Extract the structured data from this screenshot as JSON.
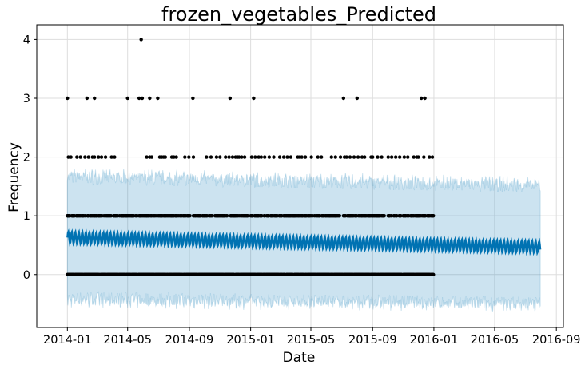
{
  "chart_data": {
    "type": "line",
    "title": "frozen_vegetables_Predicted",
    "xlabel": "Date",
    "ylabel": "Frequency",
    "x_range": [
      "2013-12-01",
      "2016-09-18"
    ],
    "xlim_display": [
      "2013-11-01",
      "2016-09-15"
    ],
    "ylim": [
      -0.9,
      4.25
    ],
    "x_ticks": [
      "2014-01",
      "2014-05",
      "2014-09",
      "2015-01",
      "2015-05",
      "2015-09",
      "2016-01",
      "2016-05",
      "2016-09"
    ],
    "x_tick_dates": [
      "2014-01-01",
      "2014-05-01",
      "2014-09-01",
      "2015-01-01",
      "2015-05-01",
      "2015-09-01",
      "2016-01-01",
      "2016-05-01",
      "2016-09-01"
    ],
    "y_ticks": [
      0,
      1,
      2,
      3,
      4
    ],
    "grid": true,
    "forecast_start": "2014-01-01",
    "forecast_end": "2016-07-31",
    "observed_end": "2015-12-31",
    "forecast_trend": [
      {
        "date": "2014-01-01",
        "yhat": 0.63
      },
      {
        "date": "2016-07-31",
        "yhat": 0.47
      }
    ],
    "weekly_amplitude": 0.1,
    "interval_upper": [
      {
        "date": "2014-01-01",
        "value": 1.65
      },
      {
        "date": "2016-07-31",
        "value": 1.5
      }
    ],
    "interval_lower": [
      {
        "date": "2014-01-01",
        "value": -0.4
      },
      {
        "date": "2016-07-31",
        "value": -0.48
      }
    ],
    "observed_points_by_level": [
      {
        "value": 0,
        "dates": "most days 2014-01-01 to 2015-12-31"
      },
      {
        "value": 1,
        "dates": "frequent days 2014-01-01 to 2015-12-31"
      },
      {
        "value": 2,
        "dates": [
          "2014-01-03",
          "2014-01-08",
          "2014-01-20",
          "2014-01-27",
          "2014-02-05",
          "2014-02-12",
          "2014-02-20",
          "2014-02-24",
          "2014-03-04",
          "2014-03-10",
          "2014-03-18",
          "2014-03-30",
          "2014-04-05",
          "2014-06-08",
          "2014-06-14",
          "2014-06-18",
          "2014-07-04",
          "2014-07-08",
          "2014-07-12",
          "2014-07-15",
          "2014-07-28",
          "2014-08-01",
          "2014-08-06",
          "2014-08-23",
          "2014-08-31",
          "2014-09-09",
          "2014-10-05",
          "2014-10-14",
          "2014-10-25",
          "2014-11-01",
          "2014-11-12",
          "2014-11-19",
          "2014-11-26",
          "2014-12-02",
          "2014-12-06",
          "2014-12-09",
          "2014-12-14",
          "2014-12-20",
          "2015-01-03",
          "2015-01-10",
          "2015-01-17",
          "2015-01-22",
          "2015-01-29",
          "2015-02-07",
          "2015-02-16",
          "2015-02-28",
          "2015-03-08",
          "2015-03-15",
          "2015-03-22",
          "2015-04-05",
          "2015-04-09",
          "2015-04-13",
          "2015-04-20",
          "2015-05-02",
          "2015-05-15",
          "2015-05-22",
          "2015-06-11",
          "2015-06-19",
          "2015-06-29",
          "2015-07-07",
          "2015-07-11",
          "2015-07-18",
          "2015-07-26",
          "2015-08-03",
          "2015-08-11",
          "2015-08-16",
          "2015-08-29",
          "2015-09-01",
          "2015-09-11",
          "2015-09-19",
          "2015-10-02",
          "2015-10-09",
          "2015-10-17",
          "2015-10-25",
          "2015-11-03",
          "2015-11-10",
          "2015-11-22",
          "2015-11-28",
          "2015-12-01",
          "2015-12-12",
          "2015-12-23",
          "2015-12-29"
        ]
      },
      {
        "value": 3,
        "dates": [
          "2014-01-01",
          "2014-02-09",
          "2014-02-24",
          "2014-05-01",
          "2014-05-24",
          "2014-05-30",
          "2014-06-14",
          "2014-06-30",
          "2014-09-08",
          "2014-11-21",
          "2015-01-07",
          "2015-07-05",
          "2015-08-01",
          "2015-12-07",
          "2015-12-14"
        ]
      },
      {
        "value": 4,
        "dates": [
          "2014-05-28"
        ]
      }
    ],
    "colors": {
      "forecast_line": "#0072B2",
      "interval": "#0072B2",
      "points": "#000000",
      "grid": "#dddddd"
    }
  }
}
